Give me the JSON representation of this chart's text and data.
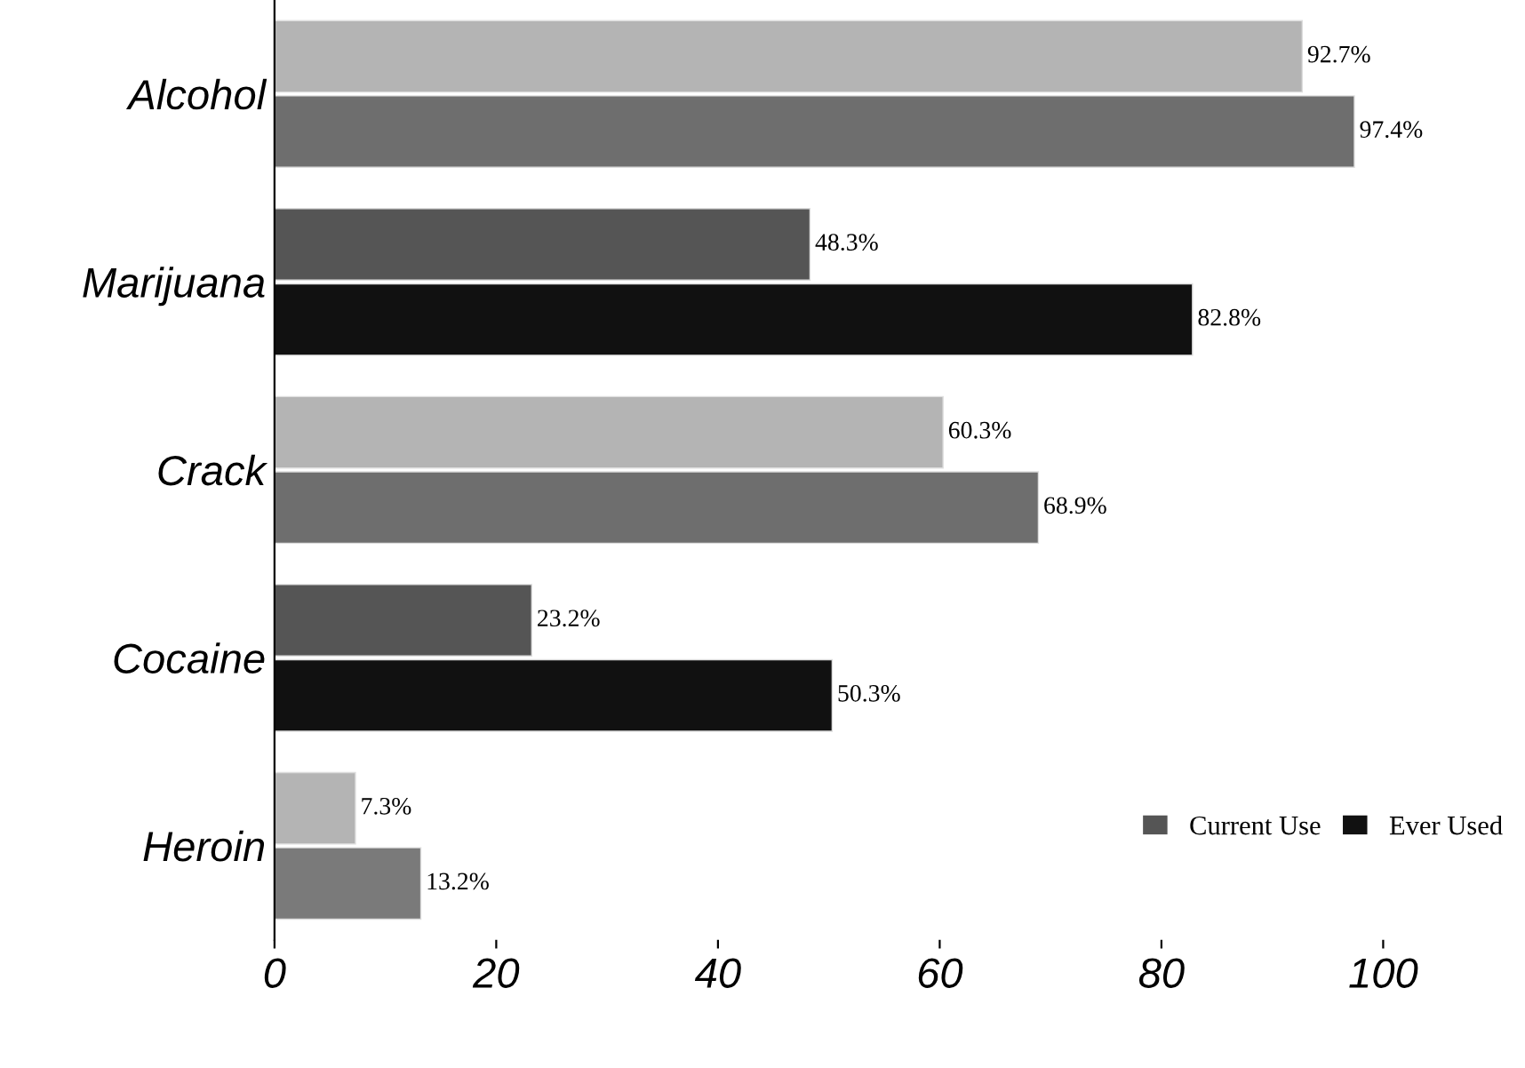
{
  "chart_data": {
    "type": "bar",
    "orientation": "horizontal",
    "categories": [
      "Alcohol",
      "Marijuana",
      "Crack",
      "Cocaine",
      "Heroin"
    ],
    "series": [
      {
        "name": "Current Use",
        "color": "#555555",
        "colors": [
          "#b4b4b4",
          "#555555",
          "#b4b4b4",
          "#555555",
          "#b4b4b4"
        ],
        "values": [
          92.7,
          48.3,
          60.3,
          23.2,
          7.3
        ],
        "value_labels": [
          "92.7%",
          "48.3%",
          "60.3%",
          "23.2%",
          "7.3%"
        ]
      },
      {
        "name": "Ever Used",
        "color": "#111111",
        "colors": [
          "#6e6e6e",
          "#111111",
          "#6e6e6e",
          "#111111",
          "#7a7a7a"
        ],
        "values": [
          97.4,
          82.8,
          68.9,
          50.3,
          13.2
        ],
        "value_labels": [
          "97.4%",
          "82.8%",
          "68.9%",
          "50.3%",
          "13.2%"
        ]
      }
    ],
    "xlim": [
      0,
      100
    ],
    "xticks": [
      0,
      20,
      40,
      60,
      80,
      100
    ],
    "grid": false,
    "legend": "bottom right"
  }
}
